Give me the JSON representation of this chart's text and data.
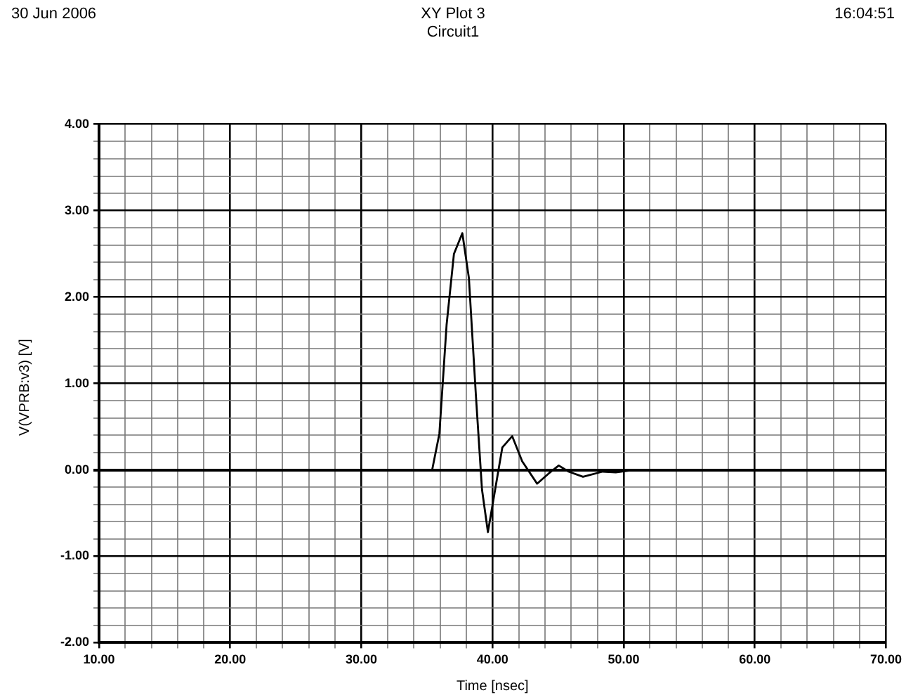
{
  "chart_data": {
    "type": "line",
    "title": "XY Plot 3",
    "subtitle": "Circuit1",
    "annotations": [
      "30 Jun 2006",
      "16:04:51"
    ],
    "xlabel": "Time [nsec]",
    "ylabel": "V(VPRB:v3) [V]",
    "series": [
      {
        "color": "#000000",
        "x": [
          10,
          35.4,
          35.95,
          36.5,
          37.06,
          37.7,
          38.2,
          38.73,
          39.2,
          39.65,
          40.2,
          40.75,
          41.5,
          42.26,
          43.4,
          44.3,
          45.05,
          45.8,
          46.9,
          48.4,
          49.4,
          50.8,
          70
        ],
        "values": [
          0,
          0,
          0.42,
          1.68,
          2.5,
          2.74,
          2.22,
          0.87,
          -0.23,
          -0.72,
          -0.23,
          0.26,
          0.39,
          0.1,
          -0.16,
          -0.04,
          0.05,
          -0.02,
          -0.08,
          -0.02,
          -0.03,
          0,
          0
        ]
      }
    ],
    "xlim": [
      10,
      70
    ],
    "xticks": [
      {
        "value": 10,
        "label": "10.00"
      },
      {
        "value": 12,
        "label": null
      },
      {
        "value": 14,
        "label": null
      },
      {
        "value": 16,
        "label": null
      },
      {
        "value": 18,
        "label": null
      },
      {
        "value": 20,
        "label": "20.00"
      },
      {
        "value": 22,
        "label": null
      },
      {
        "value": 24,
        "label": null
      },
      {
        "value": 26,
        "label": null
      },
      {
        "value": 28,
        "label": null
      },
      {
        "value": 30,
        "label": "30.00"
      },
      {
        "value": 32,
        "label": null
      },
      {
        "value": 34,
        "label": null
      },
      {
        "value": 36,
        "label": null
      },
      {
        "value": 38,
        "label": null
      },
      {
        "value": 40,
        "label": "40.00"
      },
      {
        "value": 42,
        "label": null
      },
      {
        "value": 44,
        "label": null
      },
      {
        "value": 46,
        "label": null
      },
      {
        "value": 48,
        "label": null
      },
      {
        "value": 50,
        "label": "50.00"
      },
      {
        "value": 52,
        "label": null
      },
      {
        "value": 54,
        "label": null
      },
      {
        "value": 56,
        "label": null
      },
      {
        "value": 58,
        "label": null
      },
      {
        "value": 60,
        "label": "60.00"
      },
      {
        "value": 62,
        "label": null
      },
      {
        "value": 64,
        "label": null
      },
      {
        "value": 66,
        "label": null
      },
      {
        "value": 68,
        "label": null
      },
      {
        "value": 70,
        "label": "70.00"
      }
    ],
    "ylim": [
      -2,
      4
    ],
    "yticks": [
      {
        "value": -2,
        "label": "-2.00"
      },
      {
        "value": -1.8,
        "label": null
      },
      {
        "value": -1.6,
        "label": null
      },
      {
        "value": -1.4,
        "label": null
      },
      {
        "value": -1.2,
        "label": null
      },
      {
        "value": -1,
        "label": "-1.00"
      },
      {
        "value": -0.8,
        "label": null
      },
      {
        "value": -0.6,
        "label": null
      },
      {
        "value": -0.4,
        "label": null
      },
      {
        "value": -0.2,
        "label": null
      },
      {
        "value": 0,
        "label": "0.00"
      },
      {
        "value": 0.2,
        "label": null
      },
      {
        "value": 0.4,
        "label": null
      },
      {
        "value": 0.6,
        "label": null
      },
      {
        "value": 0.8,
        "label": null
      },
      {
        "value": 1,
        "label": "1.00"
      },
      {
        "value": 1.2,
        "label": null
      },
      {
        "value": 1.4,
        "label": null
      },
      {
        "value": 1.6,
        "label": null
      },
      {
        "value": 1.8,
        "label": null
      },
      {
        "value": 2,
        "label": "2.00"
      },
      {
        "value": 2.2,
        "label": null
      },
      {
        "value": 2.4,
        "label": null
      },
      {
        "value": 2.6,
        "label": null
      },
      {
        "value": 2.8,
        "label": null
      },
      {
        "value": 3,
        "label": "3.00"
      },
      {
        "value": 3.2,
        "label": null
      },
      {
        "value": 3.4,
        "label": null
      },
      {
        "value": 3.6,
        "label": null
      },
      {
        "value": 3.8,
        "label": null
      },
      {
        "value": 4,
        "label": "4.00"
      }
    ],
    "grid": true,
    "legend": false,
    "marker": "none",
    "line_style": "solid"
  }
}
